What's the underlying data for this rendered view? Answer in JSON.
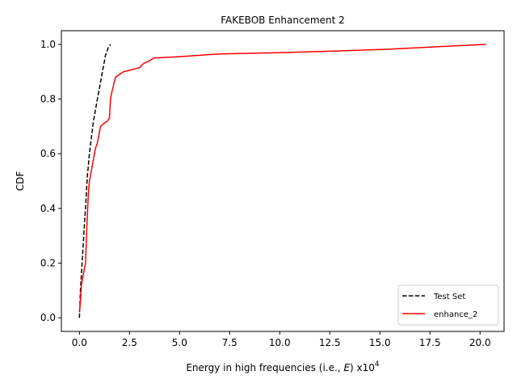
{
  "chart_data": {
    "type": "line",
    "title": "FAKEBOB Enhancement 2",
    "xlabel": "Energy in high frequencies (i.e., E) x10",
    "xlabel_prefix": "Energy in high frequencies (i.e., ",
    "xlabel_var": "E",
    "xlabel_suffix": ") x10",
    "xlabel_exponent": "4",
    "ylabel": "CDF",
    "xlim": [
      -0.9,
      21.2
    ],
    "ylim": [
      -0.05,
      1.05
    ],
    "xticks": [
      "0.0",
      "2.5",
      "5.0",
      "7.5",
      "10.0",
      "12.5",
      "15.0",
      "17.5",
      "20.0"
    ],
    "yticks": [
      "0.0",
      "0.2",
      "0.4",
      "0.6",
      "0.8",
      "1.0"
    ],
    "grid": false,
    "legend_position": "lower-right",
    "series": [
      {
        "name": "Test Set",
        "color": "#000000",
        "style": "dashed",
        "x": [
          0.0,
          0.05,
          0.1,
          0.15,
          0.2,
          0.25,
          0.3,
          0.35,
          0.4,
          0.45,
          0.5,
          0.6,
          0.7,
          0.8,
          0.9,
          1.0,
          1.1,
          1.2,
          1.3,
          1.45,
          1.55
        ],
        "y": [
          0.0,
          0.1,
          0.16,
          0.22,
          0.28,
          0.34,
          0.4,
          0.46,
          0.52,
          0.56,
          0.6,
          0.66,
          0.72,
          0.76,
          0.8,
          0.84,
          0.88,
          0.92,
          0.96,
          0.99,
          1.0
        ]
      },
      {
        "name": "enhance_2",
        "color": "#ff0000",
        "style": "solid",
        "x": [
          0.0,
          0.05,
          0.1,
          0.2,
          0.3,
          0.4,
          0.45,
          0.5,
          0.6,
          0.7,
          0.8,
          0.9,
          1.0,
          1.05,
          1.2,
          1.4,
          1.5,
          1.55,
          1.6,
          1.7,
          1.8,
          2.0,
          2.2,
          2.5,
          3.0,
          3.2,
          3.5,
          3.7,
          5.0,
          7.0,
          10.0,
          12.5,
          15.3,
          17.5,
          20.3
        ],
        "y": [
          0.02,
          0.06,
          0.12,
          0.16,
          0.2,
          0.38,
          0.46,
          0.5,
          0.54,
          0.58,
          0.62,
          0.64,
          0.68,
          0.7,
          0.71,
          0.72,
          0.73,
          0.8,
          0.82,
          0.85,
          0.88,
          0.89,
          0.9,
          0.905,
          0.915,
          0.93,
          0.94,
          0.95,
          0.955,
          0.965,
          0.97,
          0.975,
          0.982,
          0.99,
          1.0
        ]
      }
    ]
  }
}
